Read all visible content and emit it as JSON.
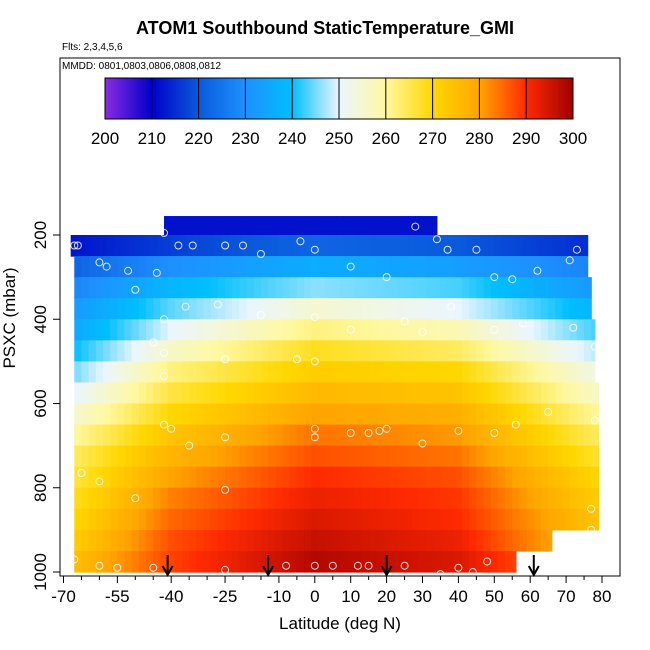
{
  "chart_data": {
    "type": "heatmap",
    "title": "ATOM1 Southbound StaticTemperature_GMI",
    "notes": [
      "Flts: 2,3,4,5,6",
      "MMDD: 0801,0803,0806,0808,0812"
    ],
    "xlabel": "Latitude (deg N)",
    "ylabel": "PSXC (mbar)",
    "xlim": [
      -70,
      80
    ],
    "ylim": [
      1010,
      100
    ],
    "x_ticks": [
      "-70",
      "-55",
      "-40",
      "-25",
      "-10",
      "0",
      "10",
      "20",
      "30",
      "40",
      "50",
      "60",
      "70",
      "80"
    ],
    "x_tick_values": [
      -70,
      -55,
      -40,
      -25,
      -10,
      0,
      10,
      20,
      30,
      40,
      50,
      60,
      70,
      80
    ],
    "x_minor_ticks": [
      -65,
      -60,
      -50,
      -45,
      -35,
      -30,
      -20,
      -15,
      -5,
      5,
      15,
      25,
      35,
      45,
      55,
      65,
      75
    ],
    "y_ticks": [
      "200",
      "400",
      "600",
      "800",
      "1000"
    ],
    "y_tick_values": [
      200,
      400,
      600,
      800,
      1000
    ],
    "colorbar": {
      "min": 200,
      "max": 300,
      "ticks": [
        "200",
        "210",
        "220",
        "230",
        "240",
        "250",
        "260",
        "270",
        "280",
        "290",
        "300"
      ],
      "tick_values": [
        200,
        210,
        220,
        230,
        240,
        250,
        260,
        270,
        280,
        290,
        300
      ],
      "colors": [
        "#8a2be2",
        "#0000c8",
        "#0a5adc",
        "#1e90ff",
        "#00bfff",
        "#eaf6ff",
        "#fff8a0",
        "#ffd700",
        "#ffa500",
        "#ff2a00",
        "#a00000"
      ]
    },
    "levels": [
      {
        "p": 180,
        "lat_min": -42,
        "lat_max": 34,
        "t": [
          [
            -42,
            212
          ],
          [
            0,
            212
          ],
          [
            34,
            212
          ]
        ]
      },
      {
        "p": 225,
        "lat_min": -68,
        "lat_max": 76,
        "t": [
          [
            -68,
            212
          ],
          [
            -40,
            217
          ],
          [
            0,
            222
          ],
          [
            40,
            220
          ],
          [
            76,
            215
          ]
        ]
      },
      {
        "p": 275,
        "lat_min": -67,
        "lat_max": 76,
        "t": [
          [
            -67,
            222
          ],
          [
            -40,
            230
          ],
          [
            0,
            236
          ],
          [
            40,
            233
          ],
          [
            76,
            228
          ]
        ]
      },
      {
        "p": 325,
        "lat_min": -67,
        "lat_max": 77,
        "t": [
          [
            -67,
            228
          ],
          [
            -40,
            238
          ],
          [
            0,
            246
          ],
          [
            40,
            243
          ],
          [
            77,
            232
          ]
        ]
      },
      {
        "p": 375,
        "lat_min": -67,
        "lat_max": 77,
        "t": [
          [
            -67,
            232
          ],
          [
            -40,
            244
          ],
          [
            0,
            255
          ],
          [
            40,
            250
          ],
          [
            77,
            238
          ]
        ]
      },
      {
        "p": 425,
        "lat_min": -67,
        "lat_max": 78,
        "t": [
          [
            -67,
            235
          ],
          [
            -40,
            250
          ],
          [
            0,
            262
          ],
          [
            40,
            258
          ],
          [
            78,
            243
          ]
        ]
      },
      {
        "p": 475,
        "lat_min": -67,
        "lat_max": 78,
        "t": [
          [
            -67,
            240
          ],
          [
            -40,
            256
          ],
          [
            0,
            268
          ],
          [
            40,
            264
          ],
          [
            78,
            248
          ]
        ]
      },
      {
        "p": 525,
        "lat_min": -67,
        "lat_max": 78,
        "t": [
          [
            -67,
            245
          ],
          [
            -40,
            262
          ],
          [
            0,
            272
          ],
          [
            40,
            270
          ],
          [
            78,
            253
          ]
        ]
      },
      {
        "p": 575,
        "lat_min": -67,
        "lat_max": 79,
        "t": [
          [
            -67,
            250
          ],
          [
            -40,
            266
          ],
          [
            0,
            276
          ],
          [
            40,
            274
          ],
          [
            79,
            256
          ]
        ]
      },
      {
        "p": 625,
        "lat_min": -67,
        "lat_max": 79,
        "t": [
          [
            -67,
            255
          ],
          [
            -40,
            270
          ],
          [
            0,
            280
          ],
          [
            40,
            278
          ],
          [
            79,
            260
          ]
        ]
      },
      {
        "p": 675,
        "lat_min": -67,
        "lat_max": 79,
        "t": [
          [
            -67,
            260
          ],
          [
            -40,
            274
          ],
          [
            0,
            284
          ],
          [
            40,
            281
          ],
          [
            79,
            264
          ]
        ]
      },
      {
        "p": 725,
        "lat_min": -67,
        "lat_max": 79,
        "t": [
          [
            -67,
            264
          ],
          [
            -40,
            277
          ],
          [
            0,
            287
          ],
          [
            40,
            284
          ],
          [
            79,
            267
          ]
        ]
      },
      {
        "p": 775,
        "lat_min": -67,
        "lat_max": 79,
        "t": [
          [
            -67,
            266
          ],
          [
            -40,
            280
          ],
          [
            0,
            290
          ],
          [
            40,
            287
          ],
          [
            79,
            270
          ]
        ]
      },
      {
        "p": 825,
        "lat_min": -67,
        "lat_max": 79,
        "t": [
          [
            -67,
            268
          ],
          [
            -40,
            283
          ],
          [
            0,
            292
          ],
          [
            40,
            289
          ],
          [
            79,
            272
          ]
        ]
      },
      {
        "p": 875,
        "lat_min": -67,
        "lat_max": 79,
        "t": [
          [
            -67,
            270
          ],
          [
            -40,
            285
          ],
          [
            0,
            294
          ],
          [
            40,
            290
          ],
          [
            79,
            274
          ]
        ]
      },
      {
        "p": 925,
        "lat_min": -67,
        "lat_max": 66,
        "t": [
          [
            -67,
            272
          ],
          [
            -40,
            287
          ],
          [
            0,
            296
          ],
          [
            40,
            292
          ],
          [
            66,
            280
          ]
        ]
      },
      {
        "p": 975,
        "lat_min": -67,
        "lat_max": 56,
        "t": [
          [
            -67,
            275
          ],
          [
            -40,
            288
          ],
          [
            0,
            298
          ],
          [
            40,
            294
          ],
          [
            56,
            288
          ]
        ]
      }
    ],
    "samples": [
      {
        "lat": -67,
        "p": 225
      },
      {
        "lat": -66,
        "p": 225
      },
      {
        "lat": -60,
        "p": 265
      },
      {
        "lat": -58,
        "p": 275
      },
      {
        "lat": -52,
        "p": 285
      },
      {
        "lat": -50,
        "p": 330
      },
      {
        "lat": -44,
        "p": 290
      },
      {
        "lat": -38,
        "p": 225
      },
      {
        "lat": -34,
        "p": 225
      },
      {
        "lat": -25,
        "p": 225
      },
      {
        "lat": -20,
        "p": 225
      },
      {
        "lat": -15,
        "p": 245
      },
      {
        "lat": -4,
        "p": 215
      },
      {
        "lat": 0,
        "p": 235
      },
      {
        "lat": 10,
        "p": 275
      },
      {
        "lat": 20,
        "p": 300
      },
      {
        "lat": 37,
        "p": 235
      },
      {
        "lat": 45,
        "p": 235
      },
      {
        "lat": 50,
        "p": 300
      },
      {
        "lat": 55,
        "p": 305
      },
      {
        "lat": 62,
        "p": 285
      },
      {
        "lat": 71,
        "p": 260
      },
      {
        "lat": 73,
        "p": 235
      },
      {
        "lat": 28,
        "p": 180
      },
      {
        "lat": 34,
        "p": 210
      },
      {
        "lat": -42,
        "p": 195
      },
      {
        "lat": -36,
        "p": 370
      },
      {
        "lat": -27,
        "p": 365
      },
      {
        "lat": -42,
        "p": 400
      },
      {
        "lat": -15,
        "p": 390
      },
      {
        "lat": 0,
        "p": 395
      },
      {
        "lat": 10,
        "p": 425
      },
      {
        "lat": 25,
        "p": 405
      },
      {
        "lat": 38,
        "p": 370
      },
      {
        "lat": 50,
        "p": 425
      },
      {
        "lat": 58,
        "p": 410
      },
      {
        "lat": 72,
        "p": 420
      },
      {
        "lat": -45,
        "p": 455
      },
      {
        "lat": -42,
        "p": 480
      },
      {
        "lat": -25,
        "p": 495
      },
      {
        "lat": -5,
        "p": 495
      },
      {
        "lat": 0,
        "p": 500
      },
      {
        "lat": 30,
        "p": 430
      },
      {
        "lat": 78,
        "p": 465
      },
      {
        "lat": -42,
        "p": 535
      },
      {
        "lat": -42,
        "p": 650
      },
      {
        "lat": -40,
        "p": 660
      },
      {
        "lat": -25,
        "p": 680
      },
      {
        "lat": -35,
        "p": 700
      },
      {
        "lat": 0,
        "p": 660
      },
      {
        "lat": 0,
        "p": 680
      },
      {
        "lat": 10,
        "p": 670
      },
      {
        "lat": 15,
        "p": 670
      },
      {
        "lat": 18,
        "p": 665
      },
      {
        "lat": 20,
        "p": 660
      },
      {
        "lat": 30,
        "p": 695
      },
      {
        "lat": 40,
        "p": 665
      },
      {
        "lat": 50,
        "p": 670
      },
      {
        "lat": 56,
        "p": 650
      },
      {
        "lat": 65,
        "p": 620
      },
      {
        "lat": 78,
        "p": 640
      },
      {
        "lat": -65,
        "p": 765
      },
      {
        "lat": -60,
        "p": 785
      },
      {
        "lat": -50,
        "p": 825
      },
      {
        "lat": -25,
        "p": 805
      },
      {
        "lat": 77,
        "p": 850
      },
      {
        "lat": 77,
        "p": 900
      },
      {
        "lat": -67,
        "p": 970
      },
      {
        "lat": -60,
        "p": 985
      },
      {
        "lat": -55,
        "p": 990
      },
      {
        "lat": -45,
        "p": 990
      },
      {
        "lat": -25,
        "p": 995
      },
      {
        "lat": -8,
        "p": 985
      },
      {
        "lat": 0,
        "p": 985
      },
      {
        "lat": 5,
        "p": 985
      },
      {
        "lat": 12,
        "p": 985
      },
      {
        "lat": 15,
        "p": 985
      },
      {
        "lat": 25,
        "p": 985
      },
      {
        "lat": 35,
        "p": 1005
      },
      {
        "lat": 40,
        "p": 990
      },
      {
        "lat": 44,
        "p": 1000
      },
      {
        "lat": 48,
        "p": 975
      }
    ],
    "arrows": [
      -41,
      -13,
      20,
      61
    ],
    "grid": false
  }
}
